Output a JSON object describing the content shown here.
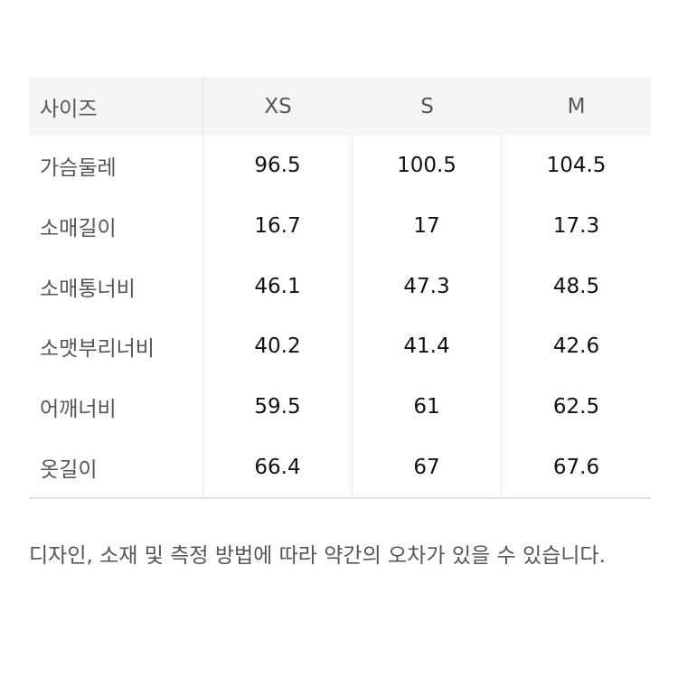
{
  "table": {
    "headers": [
      "사이즈",
      "XS",
      "S",
      "M"
    ],
    "rows": [
      {
        "label": "가슴둘레",
        "values": [
          "96.5",
          "100.5",
          "104.5"
        ]
      },
      {
        "label": "소매길이",
        "values": [
          "16.7",
          "17",
          "17.3"
        ]
      },
      {
        "label": "소매통너비",
        "values": [
          "46.1",
          "47.3",
          "48.5"
        ]
      },
      {
        "label": "소맷부리너비",
        "values": [
          "40.2",
          "41.4",
          "42.6"
        ]
      },
      {
        "label": "어깨너비",
        "values": [
          "59.5",
          "61",
          "62.5"
        ]
      },
      {
        "label": "옷길이",
        "values": [
          "66.4",
          "67",
          "67.6"
        ]
      }
    ]
  },
  "note": "디자인, 소재 및 측정 방법에 따라 약간의 오차가 있을 수 있습니다."
}
